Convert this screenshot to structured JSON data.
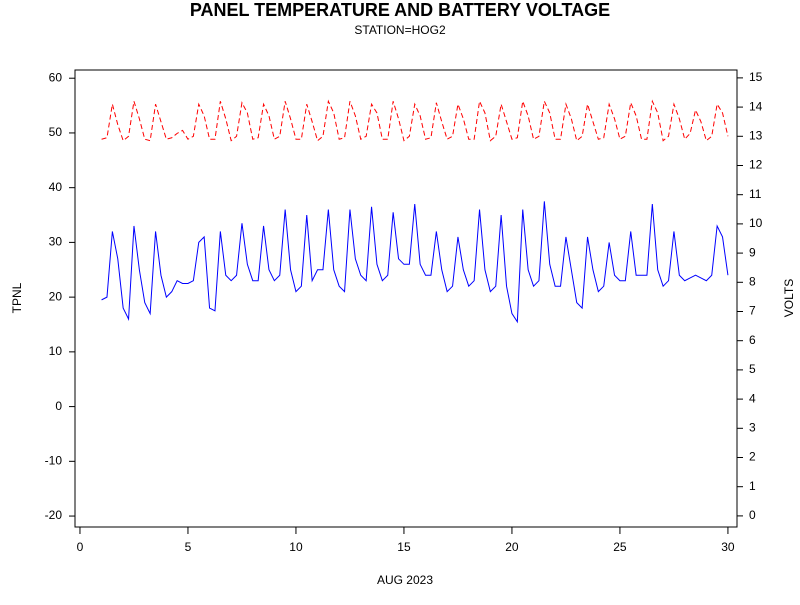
{
  "chart_data": {
    "type": "line",
    "title": "PANEL TEMPERATURE AND BATTERY VOLTAGE",
    "subtitle": "STATION=HOG2",
    "xlabel": "AUG 2023",
    "x": [
      1,
      1.25,
      1.5,
      1.75,
      2,
      2.25,
      2.5,
      2.75,
      3,
      3.25,
      3.5,
      3.75,
      4,
      4.25,
      4.5,
      4.75,
      5,
      5.25,
      5.5,
      5.75,
      6,
      6.25,
      6.5,
      6.75,
      7,
      7.25,
      7.5,
      7.75,
      8,
      8.25,
      8.5,
      8.75,
      9,
      9.25,
      9.5,
      9.75,
      10,
      10.25,
      10.5,
      10.75,
      11,
      11.25,
      11.5,
      11.75,
      12,
      12.25,
      12.5,
      12.75,
      13,
      13.25,
      13.5,
      13.75,
      14,
      14.25,
      14.5,
      14.75,
      15,
      15.25,
      15.5,
      15.75,
      16,
      16.25,
      16.5,
      16.75,
      17,
      17.25,
      17.5,
      17.75,
      18,
      18.25,
      18.5,
      18.75,
      19,
      19.25,
      19.5,
      19.75,
      20,
      20.25,
      20.5,
      20.75,
      21,
      21.25,
      21.5,
      21.75,
      22,
      22.25,
      22.5,
      22.75,
      23,
      23.25,
      23.5,
      23.75,
      24,
      24.25,
      24.5,
      24.75,
      25,
      25.25,
      25.5,
      25.75,
      26,
      26.25,
      26.5,
      26.75,
      27,
      27.25,
      27.5,
      27.75,
      28,
      28.25,
      28.5,
      28.75,
      29,
      29.25,
      29.5,
      29.75,
      30
    ],
    "series": [
      {
        "name": "TPNL",
        "color": "#0000ff",
        "axis": "y",
        "line_style": "solid",
        "values": [
          19.5,
          20,
          32,
          27,
          18,
          16,
          33,
          25,
          19,
          17,
          32,
          24,
          20,
          21,
          23,
          22.5,
          22.5,
          23,
          30,
          31,
          18,
          17.5,
          32,
          24,
          23,
          24,
          33.5,
          26,
          23,
          23,
          33,
          25,
          23,
          24,
          36,
          25,
          21,
          22,
          35,
          23,
          25,
          25,
          36,
          25,
          22,
          21,
          36,
          27,
          24,
          23,
          36.5,
          26,
          23,
          24,
          35.5,
          27,
          26,
          26,
          37,
          26,
          24,
          24,
          32,
          25,
          21,
          22,
          31,
          25,
          22,
          23,
          36,
          25,
          21,
          22,
          35,
          22,
          17,
          15.5,
          36,
          25,
          22,
          23,
          37.5,
          26,
          22,
          22,
          31,
          25,
          19,
          18,
          31,
          25,
          21,
          22,
          30,
          24,
          23,
          23,
          32,
          24,
          24,
          24,
          37,
          25,
          22,
          23,
          32,
          24,
          23,
          23.5,
          24,
          23.5,
          23,
          24,
          33,
          31,
          24
        ]
      },
      {
        "name": "VOLTS",
        "color": "#ff0000",
        "axis": "y2",
        "line_style": "dashed",
        "values": [
          12.9,
          12.95,
          14.1,
          13.4,
          12.85,
          13.0,
          14.2,
          13.6,
          12.9,
          12.85,
          14.1,
          13.5,
          12.9,
          12.95,
          13.1,
          13.2,
          12.9,
          13.0,
          14.1,
          13.7,
          12.9,
          12.9,
          14.2,
          13.6,
          12.85,
          13.0,
          14.15,
          13.8,
          12.9,
          12.95,
          14.1,
          13.7,
          12.9,
          13.0,
          14.2,
          13.6,
          12.9,
          12.9,
          14.1,
          13.5,
          12.85,
          13.0,
          14.2,
          13.8,
          12.9,
          12.95,
          14.2,
          13.7,
          12.9,
          13.0,
          14.1,
          13.8,
          12.9,
          12.9,
          14.2,
          13.6,
          12.85,
          13.0,
          14.1,
          13.7,
          12.9,
          12.95,
          14.15,
          13.5,
          12.9,
          13.0,
          14.1,
          13.6,
          12.9,
          12.9,
          14.2,
          13.8,
          12.85,
          13.0,
          14.1,
          13.5,
          12.9,
          12.95,
          14.2,
          13.7,
          12.9,
          13.0,
          14.2,
          13.8,
          12.9,
          12.9,
          14.1,
          13.6,
          12.85,
          13.0,
          14.1,
          13.5,
          12.9,
          12.95,
          14.1,
          13.6,
          12.9,
          13.0,
          14.15,
          13.7,
          12.9,
          12.9,
          14.2,
          13.8,
          12.85,
          13.0,
          14.1,
          13.6,
          12.9,
          13.1,
          13.9,
          13.5,
          12.85,
          13.0,
          14.1,
          13.8,
          13.0
        ]
      }
    ],
    "xlim": [
      -0.23,
      30.42
    ],
    "xticks": [
      0,
      5,
      10,
      15,
      20,
      25,
      30
    ],
    "ylim": [
      -22,
      61.5
    ],
    "yticks": [
      -20,
      -10,
      0,
      10,
      20,
      30,
      40,
      50,
      60
    ],
    "y2lim": [
      -0.38,
      15.27
    ],
    "y2ticks": [
      0,
      1,
      2,
      3,
      4,
      5,
      6,
      7,
      8,
      9,
      10,
      11,
      12,
      13,
      14,
      15
    ]
  }
}
